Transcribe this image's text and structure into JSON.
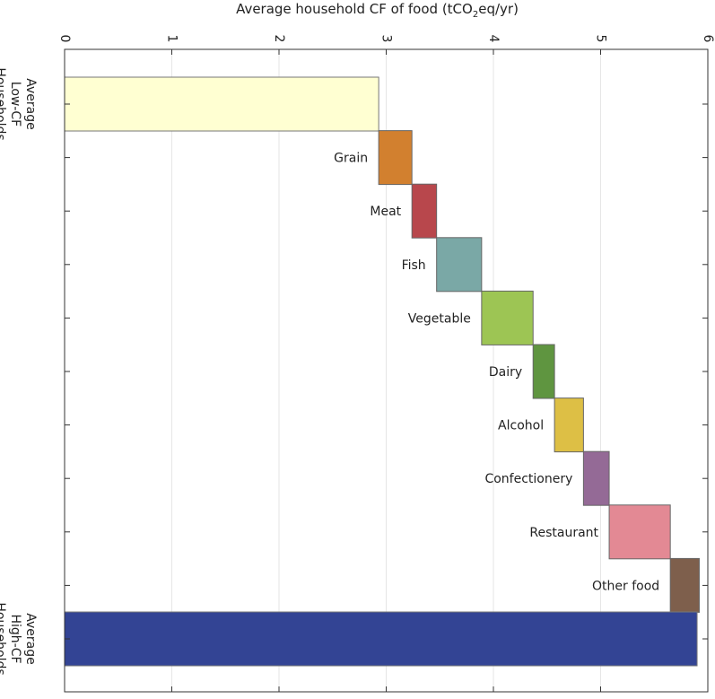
{
  "chart_data": {
    "type": "bar",
    "subtype": "waterfall",
    "orientation": "rotated-90-clockwise",
    "title": "",
    "axis_label": {
      "prefix": "Average household CF of food (tCO",
      "subscript": "2",
      "suffix": "eq/yr)"
    },
    "value_range": [
      0,
      6
    ],
    "ticks": [
      "0",
      "1",
      "2",
      "3",
      "4",
      "5",
      "6"
    ],
    "grid": true,
    "start": {
      "label_lines": [
        "Average",
        "Low-CF",
        "Households"
      ],
      "value": 2.93,
      "color": "#FFFFD2"
    },
    "steps": [
      {
        "label": "Grain",
        "delta": 0.31,
        "color": "#D2802F"
      },
      {
        "label": "Meat",
        "delta": 0.23,
        "color": "#B8474C"
      },
      {
        "label": "Fish",
        "delta": 0.42,
        "color": "#7AA8A6"
      },
      {
        "label": "Vegetable",
        "delta": 0.48,
        "color": "#9DC554"
      },
      {
        "label": "Dairy",
        "delta": 0.2,
        "color": "#5F9540"
      },
      {
        "label": "Alcohol",
        "delta": 0.27,
        "color": "#DDBF45"
      },
      {
        "label": "Confectionery",
        "delta": 0.24,
        "color": "#946A96"
      },
      {
        "label": "Restaurant",
        "delta": 0.57,
        "color": "#E38994"
      },
      {
        "label": "Other food",
        "delta": 0.27,
        "color": "#7E5F4C"
      }
    ],
    "end": {
      "label_lines": [
        "Average",
        "High-CF",
        "Households"
      ],
      "value": 5.9,
      "color": "#334494"
    }
  }
}
